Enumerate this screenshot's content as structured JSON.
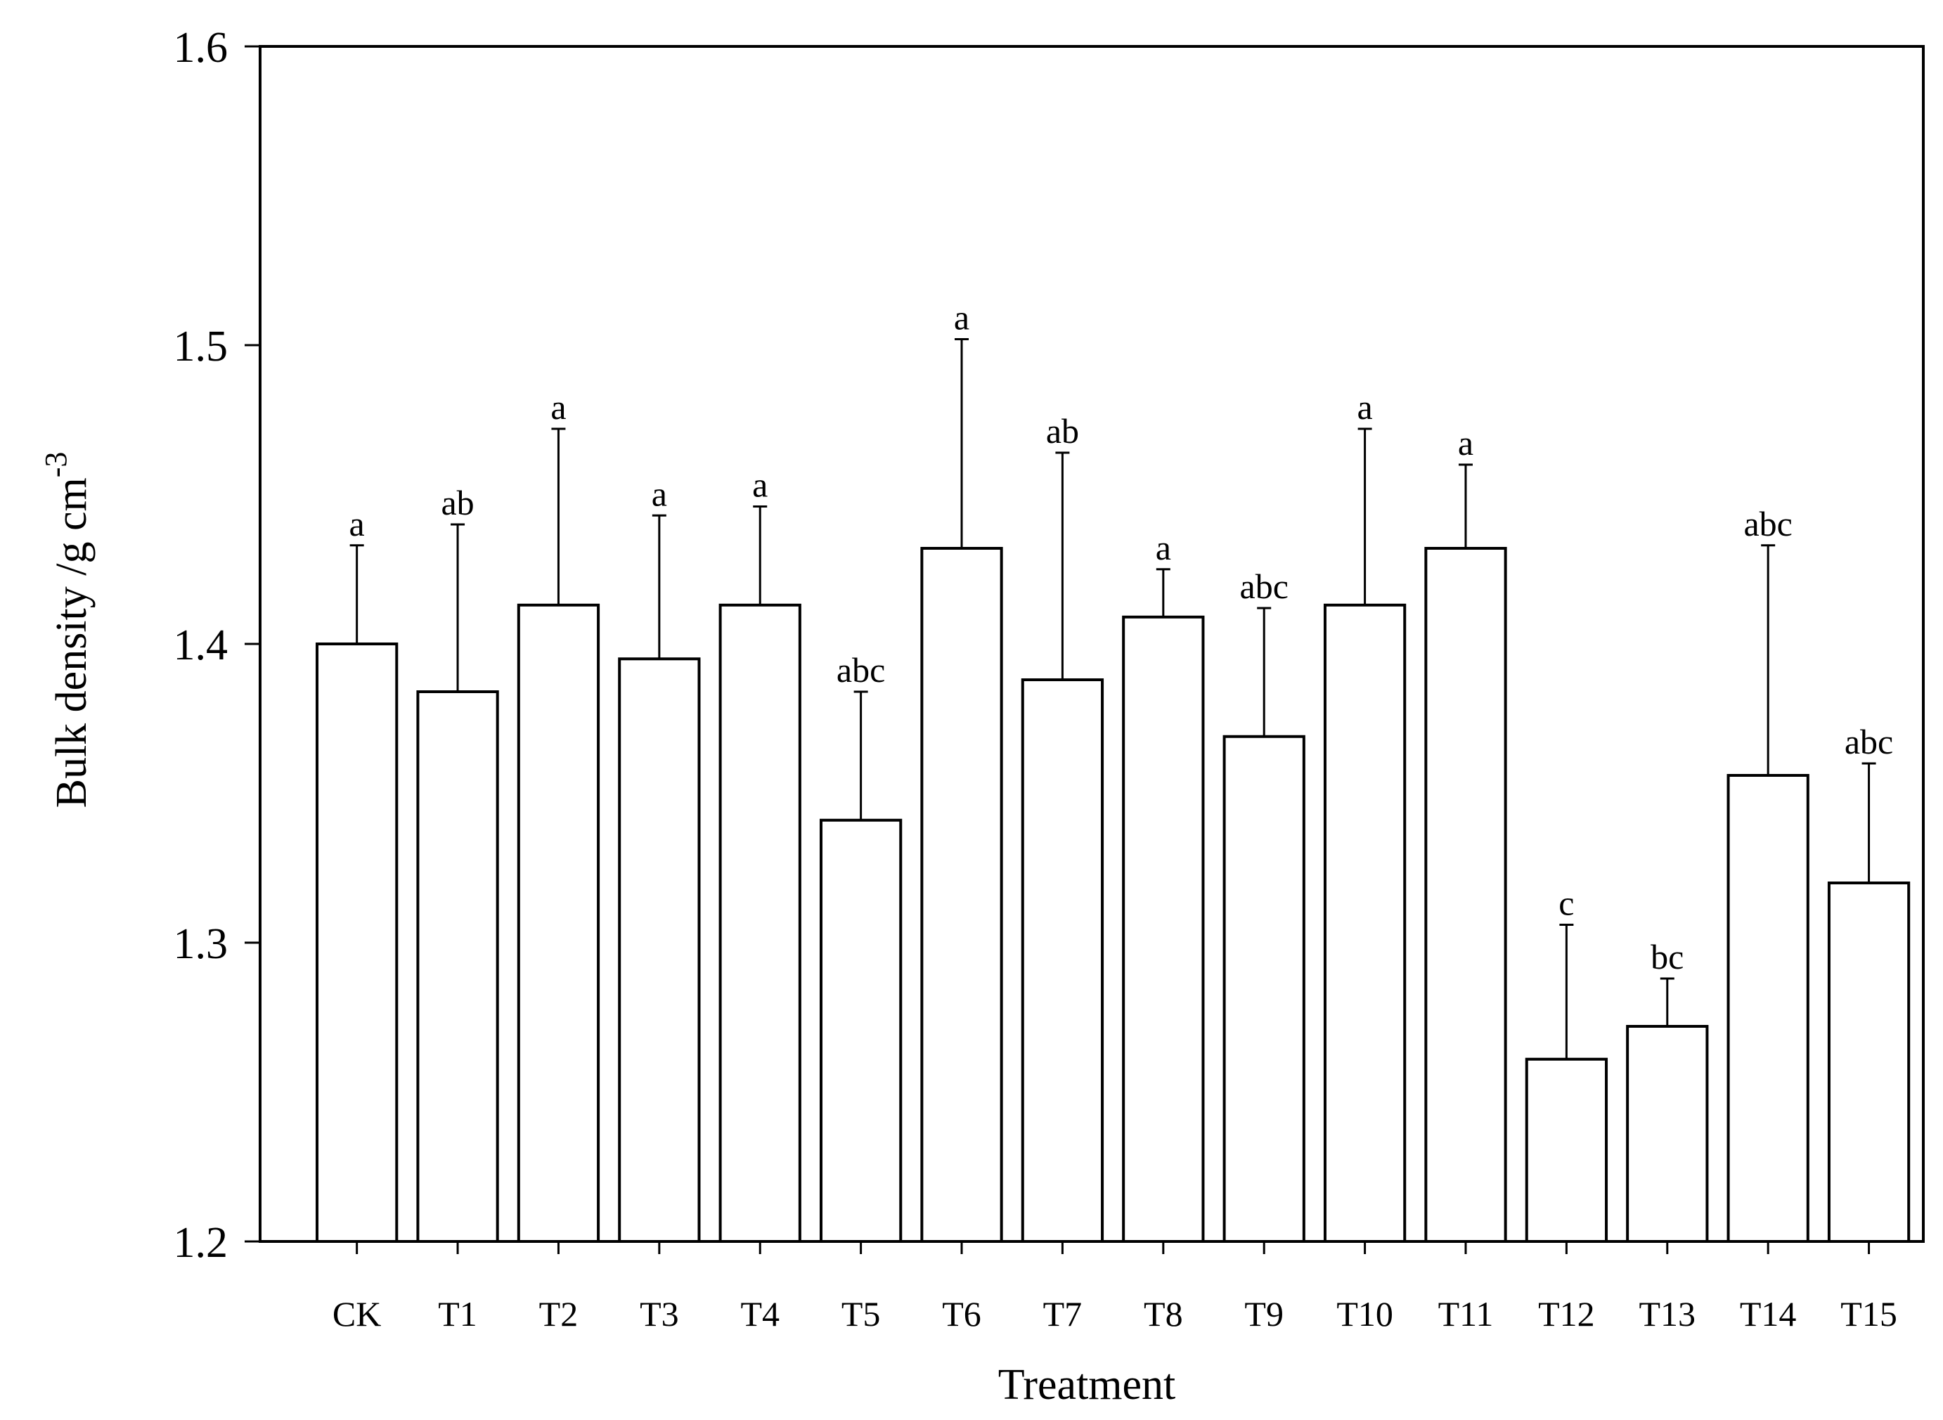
{
  "chart_data": {
    "type": "bar",
    "xlabel": "Treatment",
    "ylabel_main": "Bulk density /g cm",
    "ylabel_superscript": "-3",
    "ylim": [
      1.2,
      1.6
    ],
    "yticks": [
      "1.2",
      "1.3",
      "1.4",
      "1.5",
      "1.6"
    ],
    "grid": false,
    "legend": "none",
    "categories": [
      "CK",
      "T1",
      "T2",
      "T3",
      "T4",
      "T5",
      "T6",
      "T7",
      "T8",
      "T9",
      "T10",
      "T11",
      "T12",
      "T13",
      "T14",
      "T15"
    ],
    "values": [
      1.4,
      1.384,
      1.413,
      1.395,
      1.413,
      1.341,
      1.432,
      1.388,
      1.409,
      1.369,
      1.413,
      1.432,
      1.261,
      1.272,
      1.356,
      1.32
    ],
    "error_upper": [
      1.433,
      1.44,
      1.472,
      1.443,
      1.446,
      1.384,
      1.502,
      1.464,
      1.425,
      1.412,
      1.472,
      1.46,
      1.306,
      1.288,
      1.433,
      1.36
    ],
    "letters": [
      "a",
      "ab",
      "a",
      "a",
      "a",
      "abc",
      "a",
      "ab",
      "a",
      "abc",
      "a",
      "a",
      "c",
      "bc",
      "abc",
      "abc"
    ],
    "colors": {
      "bar_fill": "#ffffff",
      "stroke": "#000000"
    }
  }
}
